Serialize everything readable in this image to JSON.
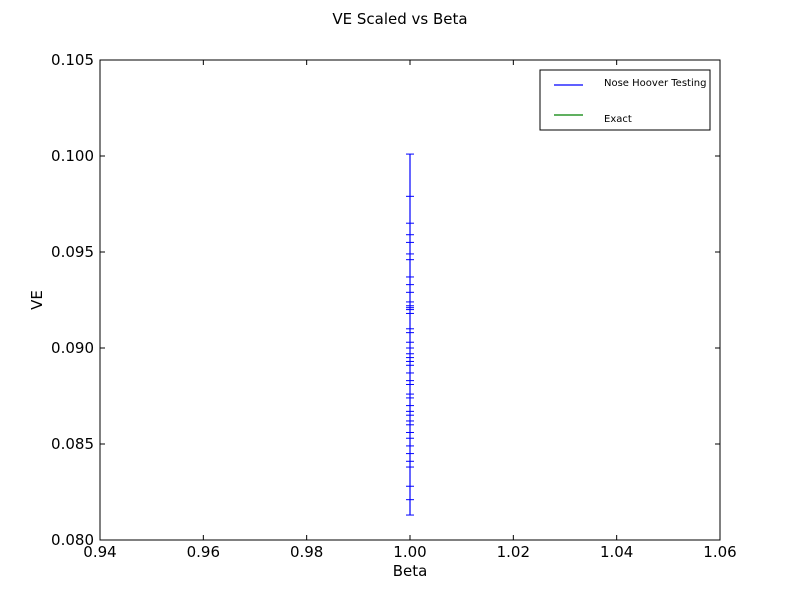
{
  "chart_data": {
    "type": "scatter",
    "title": "VE Scaled vs Beta",
    "xlabel": "Beta",
    "ylabel": "VE",
    "xlim": [
      0.94,
      1.06
    ],
    "ylim": [
      0.08,
      0.105
    ],
    "xticks": [
      "0.94",
      "0.96",
      "0.98",
      "1.00",
      "1.02",
      "1.04",
      "1.06"
    ],
    "yticks": [
      "0.080",
      "0.085",
      "0.090",
      "0.095",
      "0.100",
      "0.105"
    ],
    "grid": false,
    "legend_position": "top-right",
    "legend": [
      "Nose Hoover Testing",
      "Exact"
    ],
    "colors": {
      "series1": "#0000ff",
      "series2": "#008000"
    },
    "series": [
      {
        "name": "Nose Hoover Testing",
        "x": 1.0,
        "error_bar_range": [
          0.0813,
          0.1001
        ],
        "cap_values": [
          0.1001,
          0.0979,
          0.0965,
          0.0959,
          0.0955,
          0.0949,
          0.0946,
          0.0937,
          0.0933,
          0.0929,
          0.0924,
          0.0922,
          0.0921,
          0.092,
          0.0918,
          0.091,
          0.0908,
          0.0903,
          0.09,
          0.0897,
          0.0895,
          0.0893,
          0.0891,
          0.0887,
          0.0883,
          0.0881,
          0.0876,
          0.0874,
          0.087,
          0.0867,
          0.0865,
          0.0862,
          0.086,
          0.0856,
          0.0853,
          0.0849,
          0.0845,
          0.0841,
          0.0838,
          0.0828,
          0.0821,
          0.0813
        ]
      },
      {
        "name": "Exact",
        "x": [],
        "y": []
      }
    ]
  }
}
